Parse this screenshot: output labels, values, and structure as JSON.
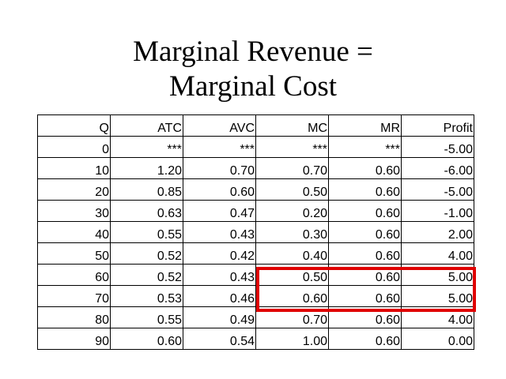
{
  "title": {
    "line1": "Marginal Revenue =",
    "line2": "Marginal Cost"
  },
  "table": {
    "headers": [
      "Q",
      "ATC",
      "AVC",
      "MC",
      "MR",
      "Profit"
    ],
    "rows": [
      [
        "0",
        "***",
        "***",
        "***",
        "***",
        "-5.00"
      ],
      [
        "10",
        "1.20",
        "0.70",
        "0.70",
        "0.60",
        "-6.00"
      ],
      [
        "20",
        "0.85",
        "0.60",
        "0.50",
        "0.60",
        "-5.00"
      ],
      [
        "30",
        "0.63",
        "0.47",
        "0.20",
        "0.60",
        "-1.00"
      ],
      [
        "40",
        "0.55",
        "0.43",
        "0.30",
        "0.60",
        "2.00"
      ],
      [
        "50",
        "0.52",
        "0.42",
        "0.40",
        "0.60",
        "4.00"
      ],
      [
        "60",
        "0.52",
        "0.43",
        "0.50",
        "0.60",
        "5.00"
      ],
      [
        "70",
        "0.53",
        "0.46",
        "0.60",
        "0.60",
        "5.00"
      ],
      [
        "80",
        "0.55",
        "0.49",
        "0.70",
        "0.60",
        "4.00"
      ],
      [
        "90",
        "0.60",
        "0.54",
        "1.00",
        "0.60",
        "0.00"
      ]
    ]
  },
  "highlight": {
    "color": "#e00000",
    "rows": [
      "60",
      "70"
    ],
    "columns": [
      "MC",
      "MR",
      "Profit"
    ]
  }
}
